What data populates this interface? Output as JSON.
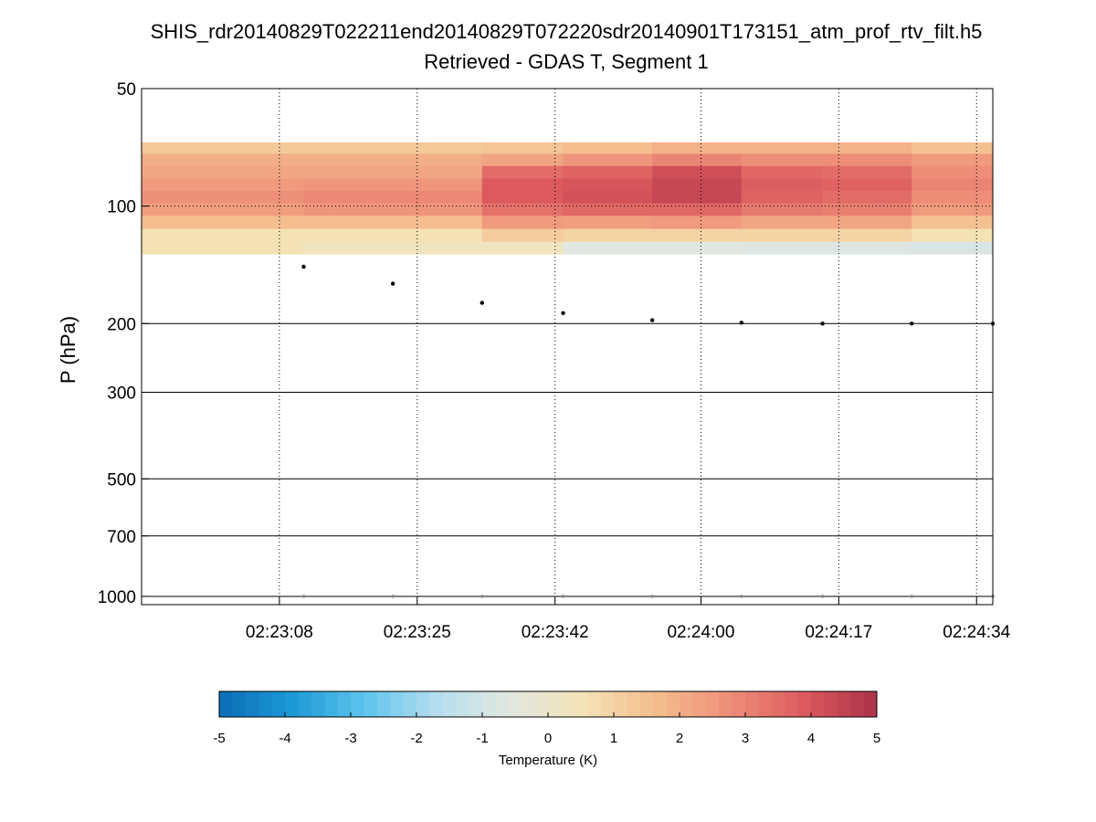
{
  "chart_data": {
    "type": "heatmap",
    "title": "SHIS_rdr20140829T022211end20140829T072220sdr20140901T173151_atm_prof_rtv_filt.h5",
    "subtitle": "Retrieved - GDAS T, Segment 1",
    "xlabel": "",
    "ylabel": "P (hPa)",
    "x_scale": "time (seconds after 02:23:00)",
    "y_scale": "log, reversed",
    "x_range": [
      -9,
      96
    ],
    "y_range": [
      50,
      1050
    ],
    "x_ticks": [
      {
        "value": 8,
        "label": "02:23:08"
      },
      {
        "value": 25,
        "label": "02:23:25"
      },
      {
        "value": 42,
        "label": "02:23:42"
      },
      {
        "value": 60,
        "label": "02:24:00"
      },
      {
        "value": 77,
        "label": "02:24:17"
      },
      {
        "value": 94,
        "label": "02:24:34"
      }
    ],
    "y_ticks": [
      {
        "value": 50,
        "label": "50"
      },
      {
        "value": 100,
        "label": "100"
      },
      {
        "value": 200,
        "label": "200"
      },
      {
        "value": 300,
        "label": "300"
      },
      {
        "value": 500,
        "label": "500"
      },
      {
        "value": 700,
        "label": "700"
      },
      {
        "value": 1000,
        "label": "1000"
      }
    ],
    "vertical_grid_at": [
      8,
      25,
      42,
      60,
      77,
      94
    ],
    "dotted_horizontal_at": [
      100
    ],
    "solid_horizontal_at": [
      200,
      300,
      500,
      700,
      1000
    ],
    "grid": true,
    "pressure_levels": [
      71,
      76,
      82,
      88,
      95,
      102,
      110,
      119,
      128
    ],
    "columns": [
      {
        "x_start": -9,
        "x_end": 11,
        "values": [
          1.3,
          2.0,
          2.2,
          2.5,
          2.7,
          2.4,
          1.6,
          0.6,
          0.6
        ]
      },
      {
        "x_start": 11,
        "x_end": 33,
        "values": [
          1.3,
          2.0,
          2.2,
          2.6,
          2.9,
          2.6,
          1.6,
          0.6,
          0.3
        ]
      },
      {
        "x_start": 33,
        "x_end": 43,
        "values": [
          1.4,
          2.2,
          3.5,
          3.9,
          3.9,
          3.4,
          2.5,
          1.2,
          0.3
        ]
      },
      {
        "x_start": 43,
        "x_end": 54,
        "values": [
          1.6,
          2.6,
          3.7,
          4.0,
          4.1,
          3.6,
          2.4,
          1.0,
          -0.6
        ]
      },
      {
        "x_start": 54,
        "x_end": 65,
        "values": [
          1.9,
          3.0,
          4.2,
          4.4,
          4.4,
          3.6,
          2.5,
          1.0,
          -0.6
        ]
      },
      {
        "x_start": 65,
        "x_end": 75,
        "values": [
          1.9,
          2.8,
          3.6,
          3.8,
          3.7,
          3.2,
          2.2,
          1.0,
          -0.7
        ]
      },
      {
        "x_start": 75,
        "x_end": 86,
        "values": [
          1.9,
          2.8,
          3.5,
          3.7,
          3.5,
          3.1,
          2.2,
          1.0,
          -0.7
        ]
      },
      {
        "x_start": 86,
        "x_end": 96,
        "values": [
          1.5,
          2.5,
          2.8,
          3.0,
          2.8,
          2.5,
          1.5,
          0.6,
          -0.8
        ]
      }
    ],
    "tropopause_markers": [
      {
        "x": 11,
        "p": 143
      },
      {
        "x": 22,
        "p": 158
      },
      {
        "x": 33,
        "p": 177
      },
      {
        "x": 43,
        "p": 188
      },
      {
        "x": 54,
        "p": 196
      },
      {
        "x": 65,
        "p": 199
      },
      {
        "x": 75,
        "p": 200
      },
      {
        "x": 86,
        "p": 200
      },
      {
        "x": 96,
        "p": 200
      }
    ],
    "surface_markers": [
      {
        "x": 11,
        "p": 1000
      },
      {
        "x": 22,
        "p": 1000
      },
      {
        "x": 33,
        "p": 1000
      },
      {
        "x": 43,
        "p": 1000
      },
      {
        "x": 54,
        "p": 1000
      },
      {
        "x": 65,
        "p": 1000
      },
      {
        "x": 75,
        "p": 1000
      },
      {
        "x": 86,
        "p": 1000
      },
      {
        "x": 96,
        "p": 1000
      }
    ],
    "colorbar": {
      "label": "Temperature (K)",
      "range": [
        -5,
        5
      ],
      "ticks": [
        "-5",
        "-4",
        "-3",
        "-2",
        "-1",
        "0",
        "1",
        "2",
        "3",
        "4",
        "5"
      ],
      "palette": [
        "#0a6db5",
        "#1d9ad6",
        "#5ec4ec",
        "#b7dfee",
        "#e3e7df",
        "#f4e3b6",
        "#f4bc8c",
        "#ee8e79",
        "#dc5a5e",
        "#ab3249"
      ]
    }
  }
}
